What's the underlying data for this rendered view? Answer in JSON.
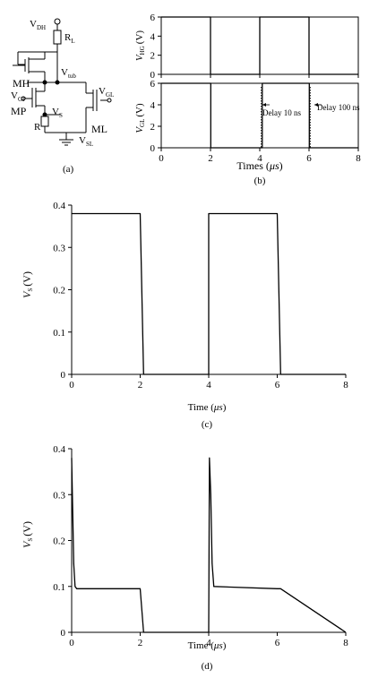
{
  "panels": {
    "a": {
      "caption": "(a)",
      "labels": {
        "vdh": "V",
        "vdh_sub": "DH",
        "rl": "R",
        "rl_sub": "L",
        "vtub": "V",
        "vtub_sub": "tub",
        "mh": "MH",
        "vgl": "V",
        "vgl_sub": "GL",
        "vgp": "V",
        "vgp_sub": "GP",
        "mp": "MP",
        "vs": "V",
        "vs_sub": "S",
        "r": "R",
        "ml": "ML",
        "vsl": "V",
        "vsl_sub": "SL"
      }
    },
    "b": {
      "caption": "(b)",
      "xlabel_prefix": "Times (",
      "xlabel_unit": "μs",
      "xlabel_suffix": ")",
      "top_ylabel": "V",
      "top_ylabel_sub": "HG",
      "top_ylabel_unit": "(V)",
      "bot_ylabel": "V",
      "bot_ylabel_sub": "GL",
      "bot_ylabel_unit": "(V)",
      "annotation_1": "Delay 10 ns",
      "annotation_2": "Delay 100 ns"
    },
    "c": {
      "caption": "(c)",
      "xlabel_prefix": "Time (",
      "xlabel_unit": "μs",
      "xlabel_suffix": ")",
      "ylabel": "V",
      "ylabel_sub": "S",
      "ylabel_unit": "(V)"
    },
    "d": {
      "caption": "(d)",
      "xlabel_prefix": "Time (",
      "xlabel_unit": "μs",
      "xlabel_suffix": ")",
      "ylabel": "V",
      "ylabel_sub": "S",
      "ylabel_unit": "(V)"
    }
  },
  "chart_data": [
    {
      "id": "b-top",
      "type": "line",
      "xlim": [
        0,
        8
      ],
      "ylim": [
        0,
        6
      ],
      "xticks": [
        0,
        2,
        4,
        6,
        8
      ],
      "yticks": [
        0,
        2,
        4,
        6
      ],
      "series": [
        {
          "x": [
            0,
            2,
            2,
            4,
            4,
            6,
            6,
            8
          ],
          "y": [
            6,
            6,
            0,
            0,
            6,
            6,
            0,
            0
          ]
        }
      ]
    },
    {
      "id": "b-bottom",
      "type": "line",
      "xlim": [
        0,
        8
      ],
      "ylim": [
        0,
        6
      ],
      "xticks": [
        0,
        2,
        4,
        6,
        8
      ],
      "yticks": [
        0,
        2,
        4,
        6
      ],
      "series": [
        {
          "x": [
            0,
            2.01,
            2.01,
            4.1,
            4.1,
            6.01,
            6.01,
            8
          ],
          "y": [
            6,
            6,
            0,
            0,
            6,
            6,
            0,
            0
          ]
        }
      ]
    },
    {
      "id": "c",
      "type": "line",
      "xlim": [
        0,
        8
      ],
      "ylim": [
        0,
        0.4
      ],
      "xticks": [
        0,
        2,
        4,
        6,
        8
      ],
      "yticks": [
        0,
        0.1,
        0.2,
        0.3,
        0.4
      ],
      "series": [
        {
          "x": [
            0,
            2.0,
            2.1,
            4.0,
            4.0,
            6.0,
            6.1,
            8
          ],
          "y": [
            0.38,
            0.38,
            0,
            0,
            0.38,
            0.38,
            0,
            0
          ]
        }
      ]
    },
    {
      "id": "d",
      "type": "line",
      "xlim": [
        0,
        8
      ],
      "ylim": [
        0,
        0.4
      ],
      "xticks": [
        0,
        2,
        4,
        6,
        8
      ],
      "yticks": [
        0,
        0.1,
        0.2,
        0.3,
        0.4
      ],
      "series": [
        {
          "x": [
            0,
            0.02,
            0.06,
            0.1,
            0.15,
            2.0,
            2.1,
            4.0,
            4.02,
            4.06,
            4.1,
            4.15,
            6.0,
            6.1,
            8
          ],
          "y": [
            0.38,
            0.3,
            0.15,
            0.1,
            0.095,
            0.095,
            0,
            0,
            0.38,
            0.3,
            0.15,
            0.1,
            0.095,
            0.095,
            0
          ]
        }
      ]
    }
  ]
}
